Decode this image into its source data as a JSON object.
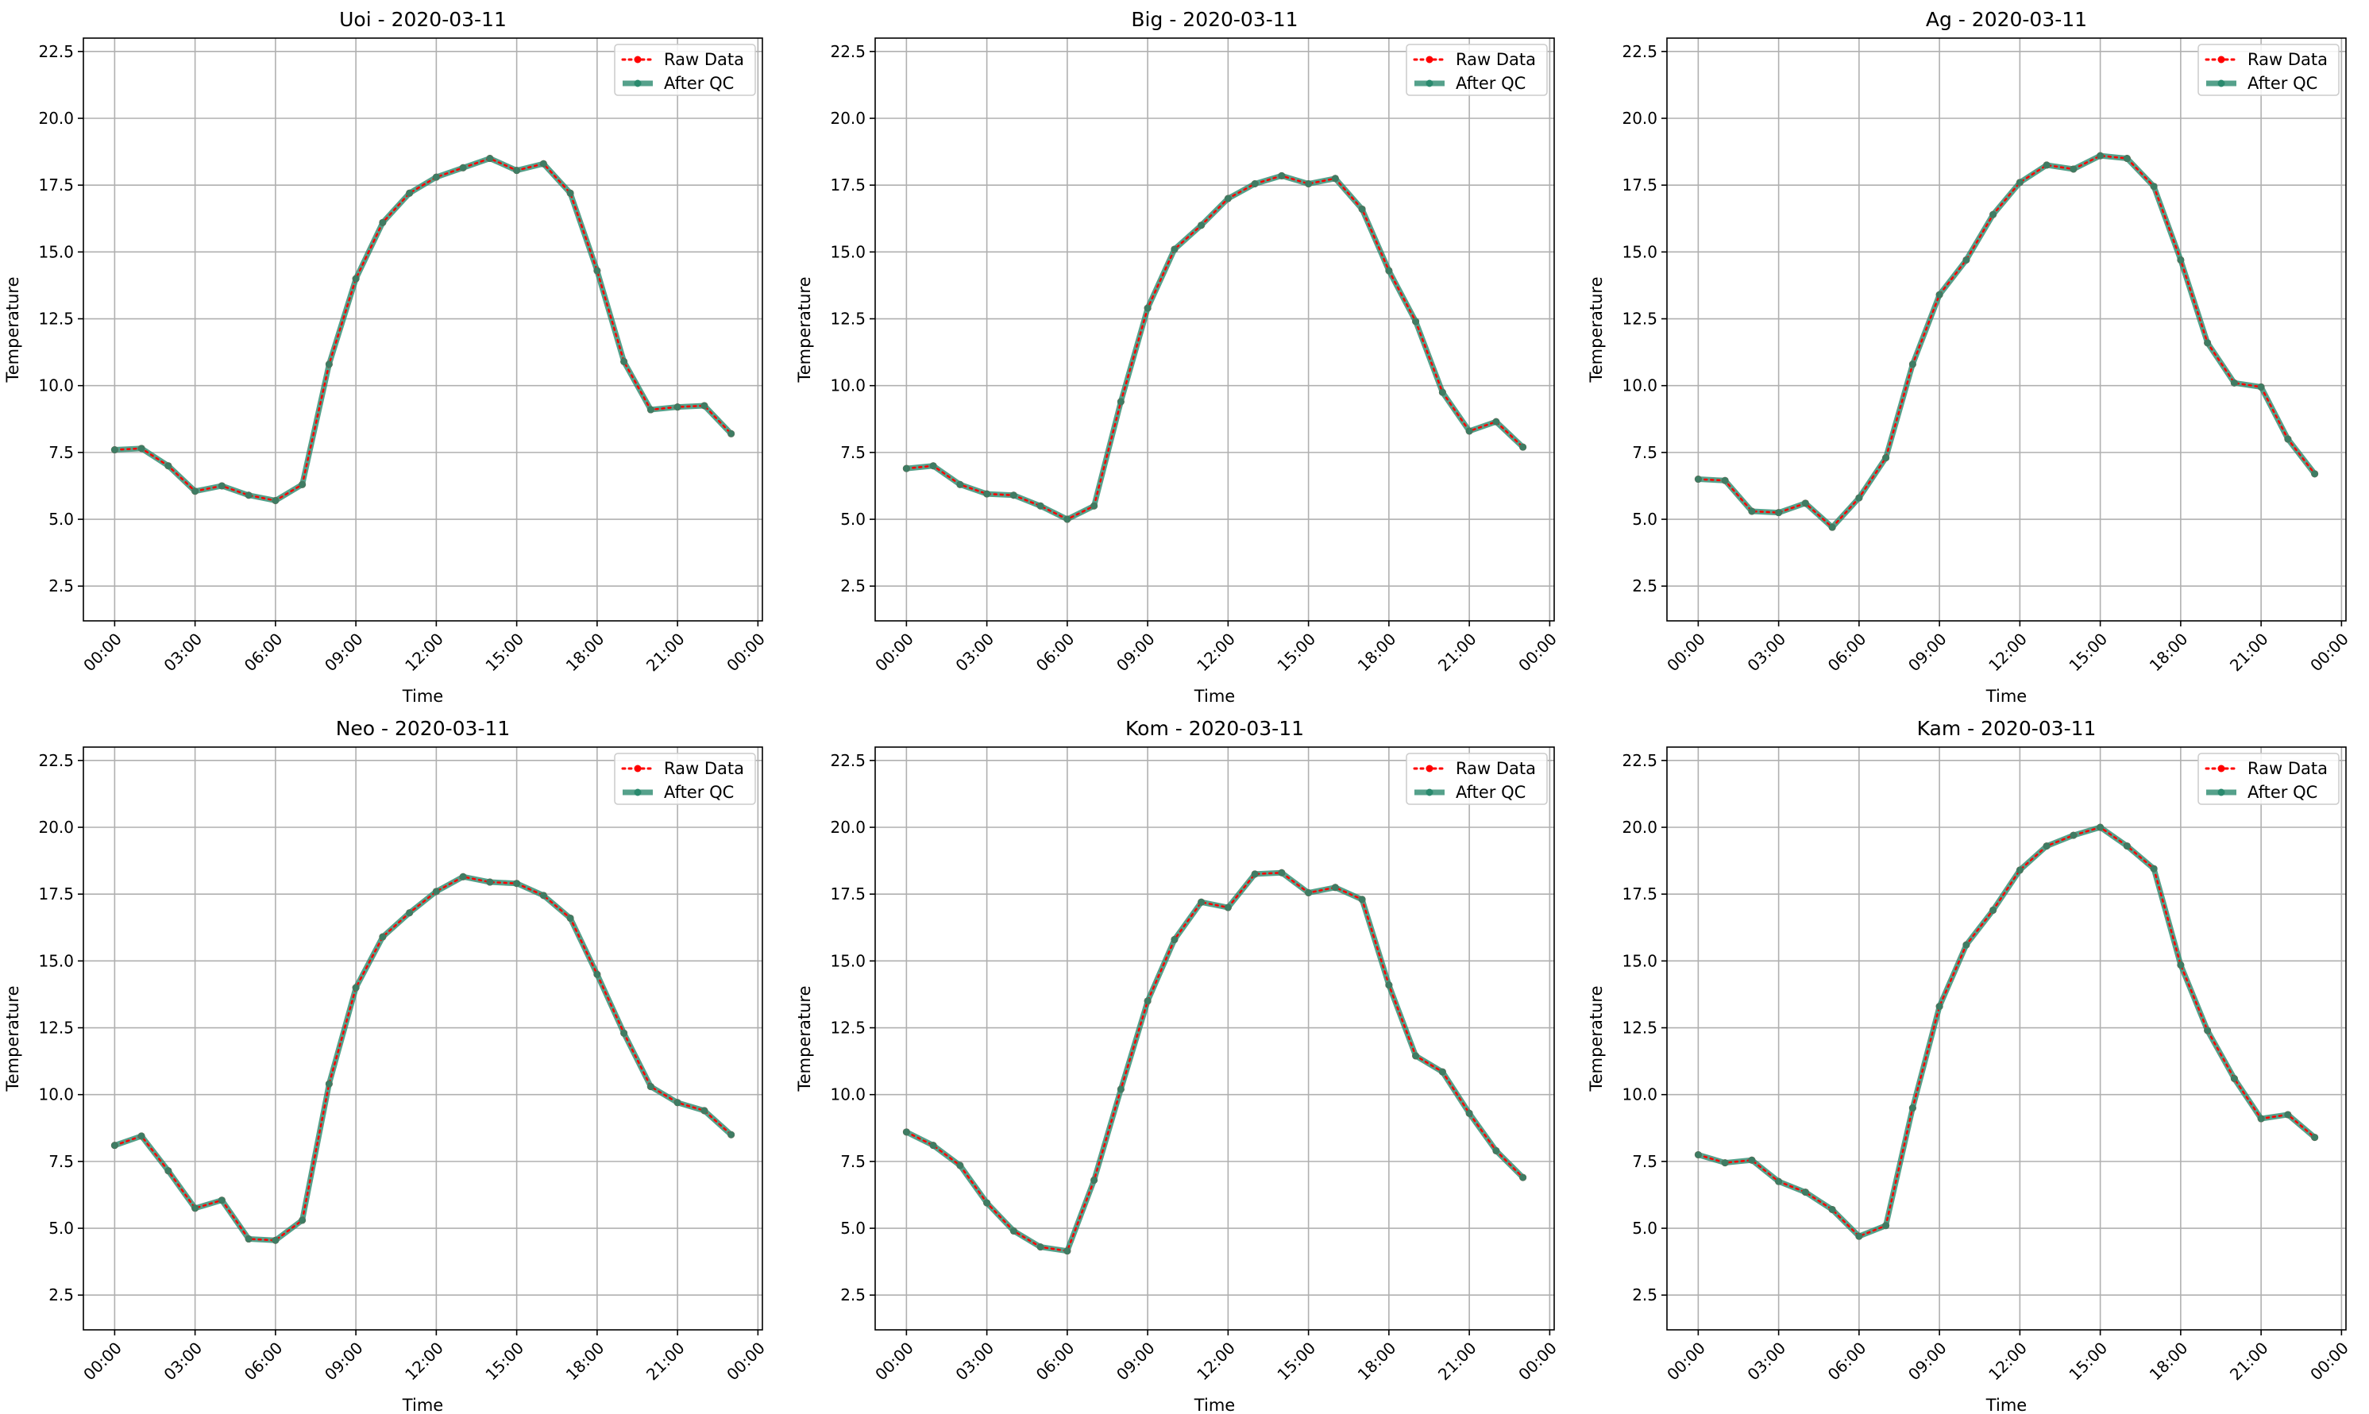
{
  "figure": {
    "x_ticks": [
      "00:00",
      "03:00",
      "06:00",
      "09:00",
      "12:00",
      "15:00",
      "18:00",
      "21:00",
      "00:00"
    ],
    "legend": {
      "raw_label": "Raw Data",
      "qc_label": "After QC"
    }
  },
  "chart_data": [
    {
      "type": "line",
      "title": "Uoi - 2020-03-11",
      "xlabel": "Time",
      "ylabel": "Temperature",
      "date": "2020-03-11",
      "xlim": [
        "2020-03-10 22:50",
        "2020-03-12 00:10"
      ],
      "ylim": [
        1.2,
        23.0
      ],
      "y_ticks": [
        2.5,
        5.0,
        7.5,
        10.0,
        12.5,
        15.0,
        17.5,
        20.0,
        22.5
      ],
      "grid": true,
      "legend_position": "upper right",
      "x": [
        "00:00",
        "01:00",
        "02:00",
        "03:00",
        "04:00",
        "05:00",
        "06:00",
        "07:00",
        "08:00",
        "09:00",
        "10:00",
        "11:00",
        "12:00",
        "13:00",
        "14:00",
        "15:00",
        "16:00",
        "17:00",
        "18:00",
        "19:00",
        "20:00",
        "21:00",
        "22:00",
        "23:00"
      ],
      "series": [
        {
          "name": "Raw Data",
          "color": "#ff0000",
          "values": [
            7.6,
            7.65,
            7.0,
            6.05,
            6.25,
            5.9,
            5.7,
            6.3,
            10.8,
            14.0,
            16.1,
            17.2,
            17.8,
            18.15,
            18.5,
            18.05,
            18.3,
            17.2,
            14.3,
            10.9,
            9.1,
            9.2,
            9.25,
            8.2
          ]
        },
        {
          "name": "After QC",
          "color": "#2a8a6e",
          "values": [
            7.6,
            7.65,
            7.0,
            6.05,
            6.25,
            5.9,
            5.7,
            6.3,
            10.8,
            14.0,
            16.1,
            17.2,
            17.8,
            18.15,
            18.5,
            18.05,
            18.3,
            17.2,
            14.3,
            10.9,
            9.1,
            9.2,
            9.25,
            8.2
          ]
        }
      ]
    },
    {
      "type": "line",
      "title": "Big - 2020-03-11",
      "xlabel": "Time",
      "ylabel": "Temperature",
      "date": "2020-03-11",
      "xlim": [
        "2020-03-10 22:50",
        "2020-03-12 00:10"
      ],
      "ylim": [
        1.2,
        23.0
      ],
      "y_ticks": [
        2.5,
        5.0,
        7.5,
        10.0,
        12.5,
        15.0,
        17.5,
        20.0,
        22.5
      ],
      "grid": true,
      "legend_position": "upper right",
      "x": [
        "00:00",
        "01:00",
        "02:00",
        "03:00",
        "04:00",
        "05:00",
        "06:00",
        "07:00",
        "08:00",
        "09:00",
        "10:00",
        "11:00",
        "12:00",
        "13:00",
        "14:00",
        "15:00",
        "16:00",
        "17:00",
        "18:00",
        "19:00",
        "20:00",
        "21:00",
        "22:00",
        "23:00"
      ],
      "series": [
        {
          "name": "Raw Data",
          "color": "#ff0000",
          "values": [
            6.9,
            7.0,
            6.3,
            5.95,
            5.9,
            5.5,
            5.0,
            5.5,
            9.4,
            12.9,
            15.1,
            16.0,
            17.0,
            17.55,
            17.85,
            17.55,
            17.75,
            16.6,
            14.3,
            12.4,
            9.75,
            8.3,
            8.65,
            7.7
          ]
        },
        {
          "name": "After QC",
          "color": "#2a8a6e",
          "values": [
            6.9,
            7.0,
            6.3,
            5.95,
            5.9,
            5.5,
            5.0,
            5.5,
            9.4,
            12.9,
            15.1,
            16.0,
            17.0,
            17.55,
            17.85,
            17.55,
            17.75,
            16.6,
            14.3,
            12.4,
            9.75,
            8.3,
            8.65,
            7.7
          ]
        }
      ]
    },
    {
      "type": "line",
      "title": "Ag - 2020-03-11",
      "xlabel": "Time",
      "ylabel": "Temperature",
      "date": "2020-03-11",
      "xlim": [
        "2020-03-10 22:50",
        "2020-03-12 00:10"
      ],
      "ylim": [
        1.2,
        23.0
      ],
      "y_ticks": [
        2.5,
        5.0,
        7.5,
        10.0,
        12.5,
        15.0,
        17.5,
        20.0,
        22.5
      ],
      "grid": true,
      "legend_position": "upper right",
      "x": [
        "00:00",
        "01:00",
        "02:00",
        "03:00",
        "04:00",
        "05:00",
        "06:00",
        "07:00",
        "08:00",
        "09:00",
        "10:00",
        "11:00",
        "12:00",
        "13:00",
        "14:00",
        "15:00",
        "16:00",
        "17:00",
        "18:00",
        "19:00",
        "20:00",
        "21:00",
        "22:00",
        "23:00"
      ],
      "series": [
        {
          "name": "Raw Data",
          "color": "#ff0000",
          "values": [
            6.5,
            6.45,
            5.3,
            5.25,
            5.6,
            4.7,
            5.8,
            7.3,
            10.8,
            13.4,
            14.7,
            16.4,
            17.6,
            18.25,
            18.1,
            18.6,
            18.5,
            17.45,
            14.7,
            11.6,
            10.1,
            9.95,
            8.0,
            6.7
          ]
        },
        {
          "name": "After QC",
          "color": "#2a8a6e",
          "values": [
            6.5,
            6.45,
            5.3,
            5.25,
            5.6,
            4.7,
            5.8,
            7.3,
            10.8,
            13.4,
            14.7,
            16.4,
            17.6,
            18.25,
            18.1,
            18.6,
            18.5,
            17.45,
            14.7,
            11.6,
            10.1,
            9.95,
            8.0,
            6.7
          ]
        }
      ]
    },
    {
      "type": "line",
      "title": "Neo - 2020-03-11",
      "xlabel": "Time",
      "ylabel": "Temperature",
      "date": "2020-03-11",
      "xlim": [
        "2020-03-10 22:50",
        "2020-03-12 00:10"
      ],
      "ylim": [
        1.2,
        23.0
      ],
      "y_ticks": [
        2.5,
        5.0,
        7.5,
        10.0,
        12.5,
        15.0,
        17.5,
        20.0,
        22.5
      ],
      "grid": true,
      "legend_position": "upper right",
      "x": [
        "00:00",
        "01:00",
        "02:00",
        "03:00",
        "04:00",
        "05:00",
        "06:00",
        "07:00",
        "08:00",
        "09:00",
        "10:00",
        "11:00",
        "12:00",
        "13:00",
        "14:00",
        "15:00",
        "16:00",
        "17:00",
        "18:00",
        "19:00",
        "20:00",
        "21:00",
        "22:00",
        "23:00"
      ],
      "series": [
        {
          "name": "Raw Data",
          "color": "#ff0000",
          "values": [
            8.1,
            8.45,
            7.15,
            5.75,
            6.05,
            4.6,
            4.55,
            5.3,
            10.4,
            14.0,
            15.9,
            16.8,
            17.6,
            18.15,
            17.95,
            17.9,
            17.45,
            16.6,
            14.5,
            12.3,
            10.3,
            9.7,
            9.4,
            8.5
          ]
        },
        {
          "name": "After QC",
          "color": "#2a8a6e",
          "values": [
            8.1,
            8.45,
            7.15,
            5.75,
            6.05,
            4.6,
            4.55,
            5.3,
            10.4,
            14.0,
            15.9,
            16.8,
            17.6,
            18.15,
            17.95,
            17.9,
            17.45,
            16.6,
            14.5,
            12.3,
            10.3,
            9.7,
            9.4,
            8.5
          ]
        }
      ]
    },
    {
      "type": "line",
      "title": "Kom - 2020-03-11",
      "xlabel": "Time",
      "ylabel": "Temperature",
      "date": "2020-03-11",
      "xlim": [
        "2020-03-10 22:50",
        "2020-03-12 00:10"
      ],
      "ylim": [
        1.2,
        23.0
      ],
      "y_ticks": [
        2.5,
        5.0,
        7.5,
        10.0,
        12.5,
        15.0,
        17.5,
        20.0,
        22.5
      ],
      "grid": true,
      "legend_position": "upper right",
      "x": [
        "00:00",
        "01:00",
        "02:00",
        "03:00",
        "04:00",
        "05:00",
        "06:00",
        "07:00",
        "08:00",
        "09:00",
        "10:00",
        "11:00",
        "12:00",
        "13:00",
        "14:00",
        "15:00",
        "16:00",
        "17:00",
        "18:00",
        "19:00",
        "20:00",
        "21:00",
        "22:00",
        "23:00"
      ],
      "series": [
        {
          "name": "Raw Data",
          "color": "#ff0000",
          "values": [
            8.6,
            8.1,
            7.35,
            5.95,
            4.9,
            4.3,
            4.15,
            6.8,
            10.2,
            13.5,
            15.8,
            17.2,
            17.0,
            18.25,
            18.3,
            17.55,
            17.75,
            17.3,
            14.1,
            11.45,
            10.85,
            9.3,
            7.9,
            6.9
          ]
        },
        {
          "name": "After QC",
          "color": "#2a8a6e",
          "values": [
            8.6,
            8.1,
            7.35,
            5.95,
            4.9,
            4.3,
            4.15,
            6.8,
            10.2,
            13.5,
            15.8,
            17.2,
            17.0,
            18.25,
            18.3,
            17.55,
            17.75,
            17.3,
            14.1,
            11.45,
            10.85,
            9.3,
            7.9,
            6.9
          ]
        }
      ]
    },
    {
      "type": "line",
      "title": "Kam - 2020-03-11",
      "xlabel": "Time",
      "ylabel": "Temperature",
      "date": "2020-03-11",
      "xlim": [
        "2020-03-10 22:50",
        "2020-03-12 00:10"
      ],
      "ylim": [
        1.2,
        23.0
      ],
      "y_ticks": [
        2.5,
        5.0,
        7.5,
        10.0,
        12.5,
        15.0,
        17.5,
        20.0,
        22.5
      ],
      "grid": true,
      "legend_position": "upper right",
      "x": [
        "00:00",
        "01:00",
        "02:00",
        "03:00",
        "04:00",
        "05:00",
        "06:00",
        "07:00",
        "08:00",
        "09:00",
        "10:00",
        "11:00",
        "12:00",
        "13:00",
        "14:00",
        "15:00",
        "16:00",
        "17:00",
        "18:00",
        "19:00",
        "20:00",
        "21:00",
        "22:00",
        "23:00"
      ],
      "series": [
        {
          "name": "Raw Data",
          "color": "#ff0000",
          "values": [
            7.75,
            7.45,
            7.55,
            6.75,
            6.35,
            5.7,
            4.7,
            5.1,
            9.5,
            13.3,
            15.6,
            16.9,
            18.4,
            19.3,
            19.7,
            20.0,
            19.3,
            18.45,
            14.85,
            12.4,
            10.6,
            9.1,
            9.25,
            8.4
          ]
        },
        {
          "name": "After QC",
          "color": "#2a8a6e",
          "values": [
            7.75,
            7.45,
            7.55,
            6.75,
            6.35,
            5.7,
            4.7,
            5.1,
            9.5,
            13.3,
            15.6,
            16.9,
            18.4,
            19.3,
            19.7,
            20.0,
            19.3,
            18.45,
            14.85,
            12.4,
            10.6,
            9.1,
            9.25,
            8.4
          ]
        }
      ]
    }
  ]
}
